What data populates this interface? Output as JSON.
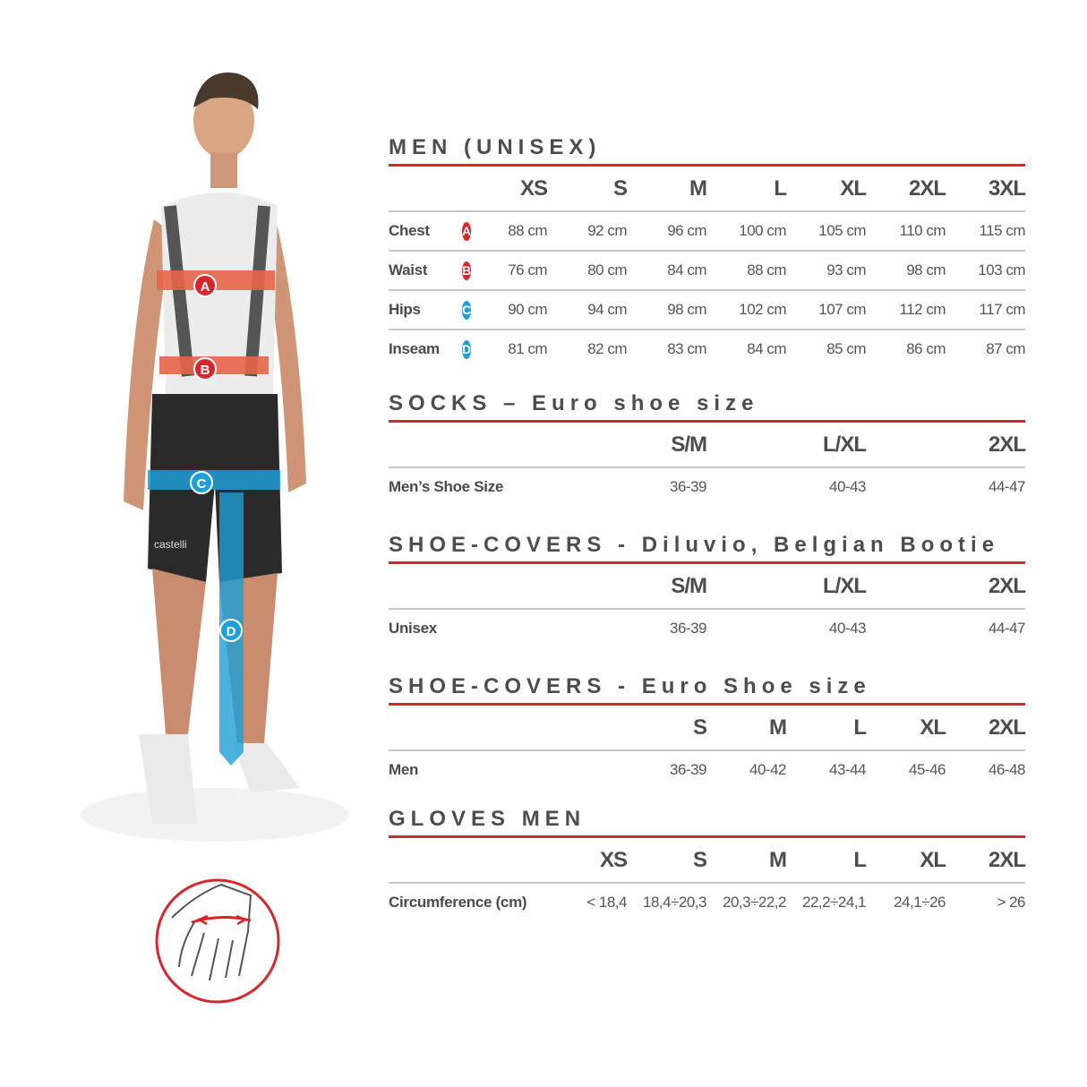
{
  "colors": {
    "accent_red": "#d7262e",
    "badge_red": "#d7262e",
    "badge_blue": "#1e9fd8",
    "band_red": "#e8644a",
    "band_blue": "#1e9fd8"
  },
  "figure": {
    "badges": [
      "A",
      "B",
      "C",
      "D"
    ],
    "brand": "castelli"
  },
  "men": {
    "title": "MEN (UNISEX)",
    "sizes": [
      "XS",
      "S",
      "M",
      "L",
      "XL",
      "2XL",
      "3XL"
    ],
    "rows": [
      {
        "label": "Chest",
        "badge": "A",
        "badge_color": "red",
        "values": [
          "88 cm",
          "92 cm",
          "96 cm",
          "100 cm",
          "105 cm",
          "110 cm",
          "115 cm"
        ]
      },
      {
        "label": "Waist",
        "badge": "B",
        "badge_color": "red",
        "values": [
          "76 cm",
          "80 cm",
          "84 cm",
          "88 cm",
          "93 cm",
          "98 cm",
          "103 cm"
        ]
      },
      {
        "label": "Hips",
        "badge": "C",
        "badge_color": "blue",
        "values": [
          "90 cm",
          "94 cm",
          "98 cm",
          "102 cm",
          "107 cm",
          "112 cm",
          "117 cm"
        ]
      },
      {
        "label": "Inseam",
        "badge": "D",
        "badge_color": "blue",
        "values": [
          "81 cm",
          "82 cm",
          "83 cm",
          "84 cm",
          "85 cm",
          "86 cm",
          "87 cm"
        ]
      }
    ]
  },
  "socks": {
    "title": "SOCKS – Euro shoe size",
    "sizes": [
      "S/M",
      "L/XL",
      "2XL"
    ],
    "rows": [
      {
        "label": "Men’s Shoe Size",
        "values": [
          "36-39",
          "40-43",
          "44-47"
        ]
      }
    ]
  },
  "shoe_covers_diluvio": {
    "title": "SHOE-COVERS - Diluvio, Belgian Bootie",
    "sizes": [
      "S/M",
      "L/XL",
      "2XL"
    ],
    "rows": [
      {
        "label": "Unisex",
        "values": [
          "36-39",
          "40-43",
          "44-47"
        ]
      }
    ]
  },
  "shoe_covers_euro": {
    "title": "SHOE-COVERS - Euro Shoe size",
    "sizes": [
      "S",
      "M",
      "L",
      "XL",
      "2XL"
    ],
    "rows": [
      {
        "label": "Men",
        "values": [
          "36-39",
          "40-42",
          "43-44",
          "45-46",
          "46-48"
        ]
      }
    ]
  },
  "gloves": {
    "title": "GLOVES MEN",
    "sizes": [
      "XS",
      "S",
      "M",
      "L",
      "XL",
      "2XL"
    ],
    "rows": [
      {
        "label": "Circumference (cm)",
        "values": [
          "< 18,4",
          "18,4÷20,3",
          "20,3÷22,2",
          "22,2÷24,1",
          "24,1÷26",
          "> 26"
        ]
      }
    ]
  }
}
